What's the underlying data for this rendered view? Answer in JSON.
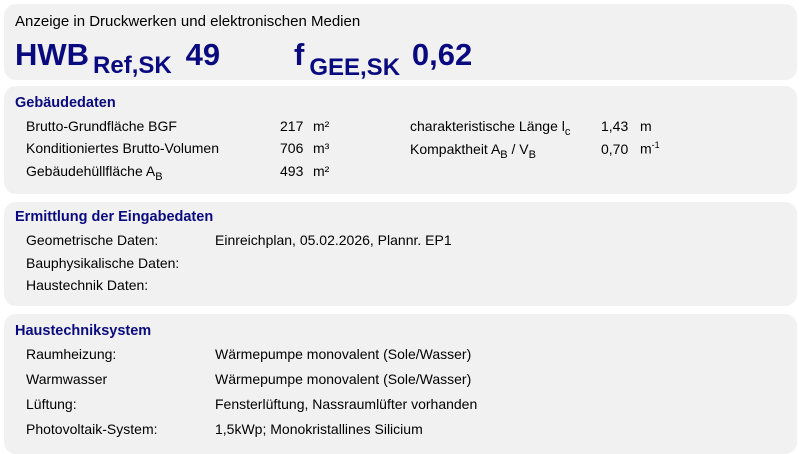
{
  "display": {
    "caption": "Anzeige in Druckwerken und elektronischen Medien",
    "hwb_main": "HWB",
    "hwb_sub": "Ref,SK",
    "hwb_value": "49",
    "f_main": "f",
    "f_sub": "GEE,SK",
    "f_value": "0,62"
  },
  "building": {
    "title": "Gebäudedaten",
    "rows": [
      {
        "label": "Brutto-Grundfläche BGF",
        "value": "217",
        "unit": "m²"
      },
      {
        "label": "Konditioniertes Brutto-Volumen",
        "value": "706",
        "unit": "m³"
      },
      {
        "label": "Gebäudehüllfläche A",
        "label_sub": "B",
        "value": "493",
        "unit": "m²"
      }
    ],
    "right": [
      {
        "label": "charakteristische Länge l",
        "label_sub": "c",
        "value": "1,43",
        "unit": "m"
      },
      {
        "label": "Kompaktheit A",
        "label_sub": "B",
        "label_mid": " / V",
        "label_sub2": "B",
        "value": "0,70",
        "unit": "m",
        "unit_sup": "-1"
      }
    ]
  },
  "input": {
    "title": "Ermittlung der Eingabedaten",
    "rows": [
      {
        "label": "Geometrische Daten:",
        "value": "Einreichplan, 05.02.2026, Plannr. EP1"
      },
      {
        "label": "Bauphysikalische Daten:",
        "value": ""
      },
      {
        "label": "Haustechnik Daten:",
        "value": ""
      }
    ]
  },
  "systems": {
    "title": "Haustechniksystem",
    "rows": [
      {
        "label": "Raumheizung:",
        "value": "Wärmepumpe monovalent (Sole/Wasser)"
      },
      {
        "label": "Warmwasser",
        "value": "Wärmepumpe monovalent (Sole/Wasser)"
      },
      {
        "label": "Lüftung:",
        "value": "Fensterlüftung, Nassraumlüfter vorhanden"
      },
      {
        "label": "Photovoltaik-System:",
        "value": "1,5kWp; Monokristallines Silicium"
      }
    ]
  }
}
